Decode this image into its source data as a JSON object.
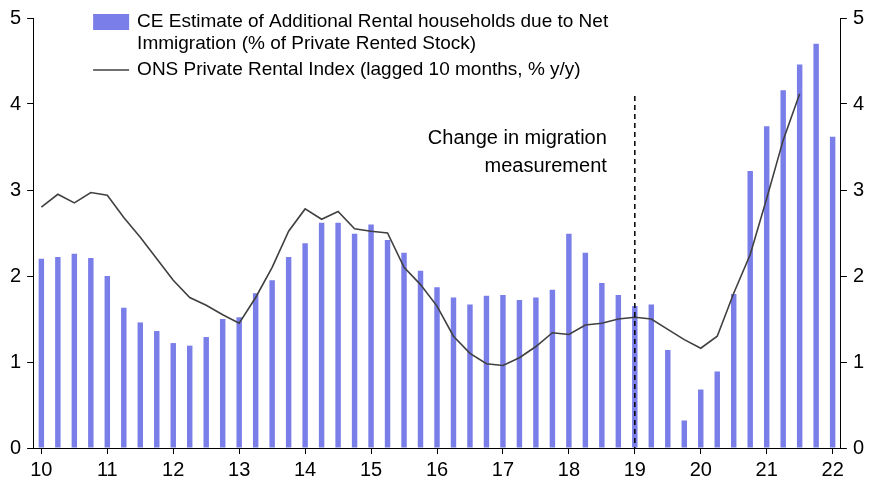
{
  "chart_data": {
    "type": "bar",
    "categories": [
      "10",
      null,
      null,
      null,
      "11",
      null,
      null,
      null,
      "12",
      null,
      null,
      null,
      "13",
      null,
      null,
      null,
      "14",
      null,
      null,
      null,
      "15",
      null,
      null,
      null,
      "16",
      null,
      null,
      null,
      "17",
      null,
      null,
      null,
      "18",
      null,
      null,
      null,
      "19",
      null,
      null,
      null,
      "20",
      null,
      null,
      null,
      "21",
      null,
      null,
      null,
      "22"
    ],
    "series": [
      {
        "name": "CE Estimate of Additional Rental households due to Net Immigration (% of Private Rented Stock)",
        "type": "bar",
        "color": "#7a7ee8",
        "axis": "y",
        "values": [
          2.2,
          2.22,
          2.26,
          2.21,
          2.0,
          1.63,
          1.46,
          1.36,
          1.22,
          1.19,
          1.29,
          1.5,
          1.52,
          1.8,
          1.95,
          2.22,
          2.38,
          2.62,
          2.62,
          2.49,
          2.6,
          2.42,
          2.27,
          2.06,
          1.87,
          1.75,
          1.67,
          1.77,
          1.78,
          1.72,
          1.75,
          1.84,
          2.49,
          2.27,
          1.92,
          1.78,
          1.65,
          1.67,
          1.14,
          0.32,
          0.68,
          0.89,
          1.79,
          3.22,
          3.74,
          4.16,
          4.46,
          4.7,
          3.62
        ]
      },
      {
        "name": "ONS Private Rental Index (lagged 10 months, % y/y)",
        "type": "line",
        "color": "#404040",
        "axis": "y2",
        "values": [
          2.8,
          2.95,
          2.85,
          2.97,
          2.94,
          2.68,
          2.45,
          2.2,
          1.95,
          1.75,
          1.66,
          1.55,
          1.45,
          1.75,
          2.1,
          2.52,
          2.78,
          2.66,
          2.75,
          2.55,
          2.52,
          2.5,
          2.1,
          1.9,
          1.65,
          1.3,
          1.1,
          0.98,
          0.96,
          1.05,
          1.18,
          1.34,
          1.32,
          1.43,
          1.45,
          1.5,
          1.52,
          1.5,
          1.38,
          1.26,
          1.16,
          1.3,
          1.8,
          2.25,
          2.9,
          3.58,
          4.12,
          null,
          null
        ]
      }
    ],
    "ylim": [
      0,
      5
    ],
    "yticks": [
      0,
      1,
      2,
      3,
      4,
      5
    ],
    "y2lim": [
      0,
      5
    ],
    "y2ticks": [
      0,
      1,
      2,
      3,
      4,
      5
    ],
    "annotations": [
      {
        "x": "19",
        "label": "Change in migration measurement",
        "line_style": "dashed"
      }
    ],
    "legend": "top-left",
    "grid": false
  }
}
